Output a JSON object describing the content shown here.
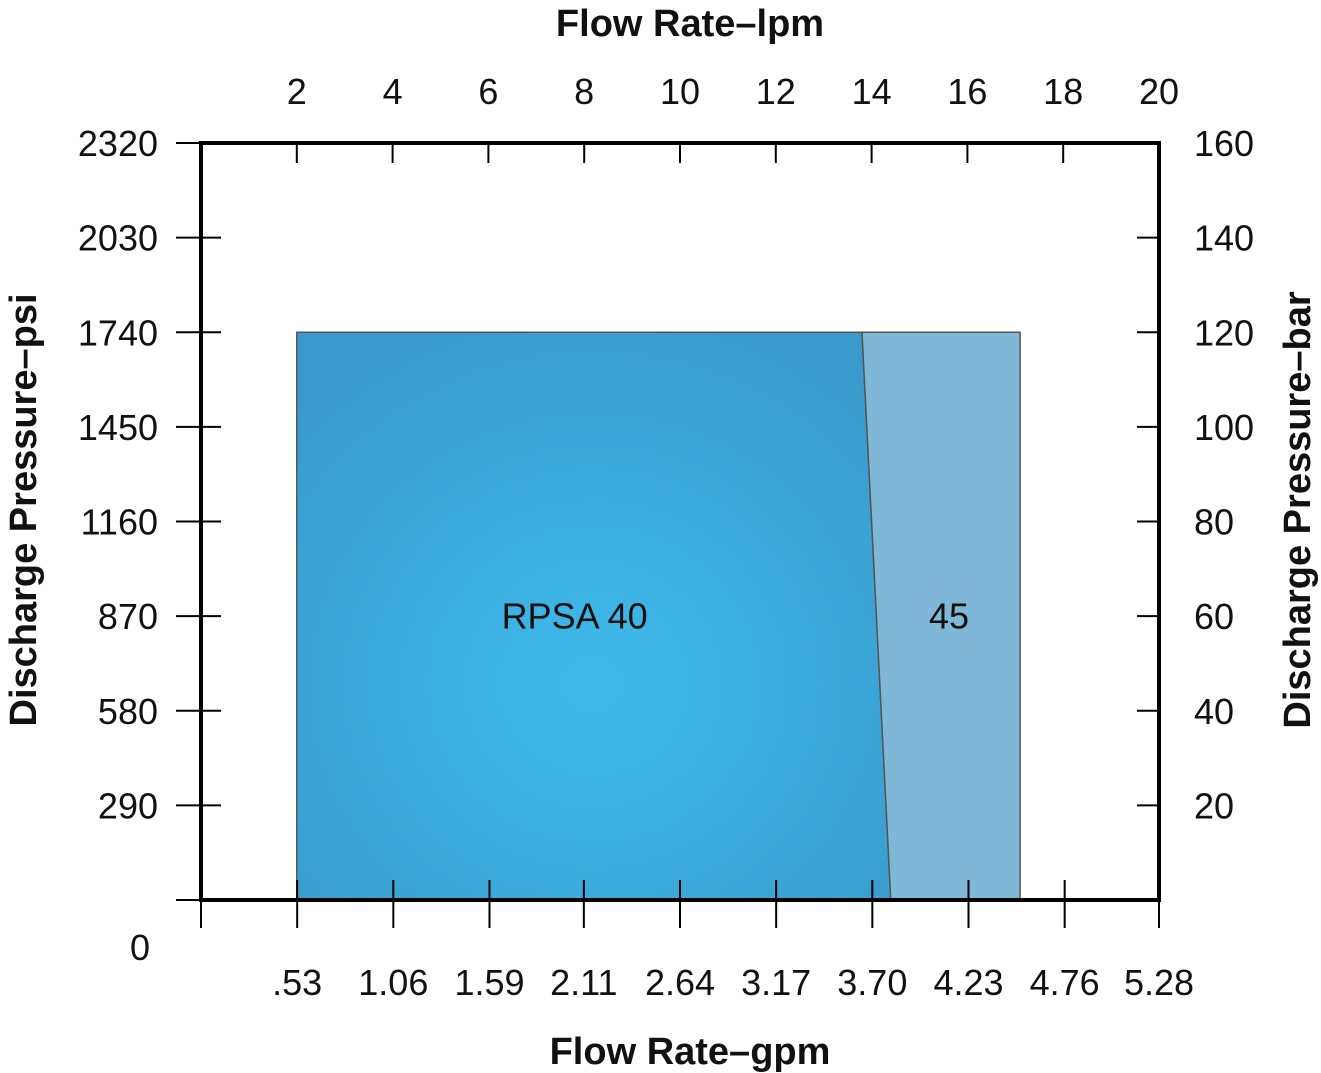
{
  "chart_data": {
    "type": "area",
    "x_top": {
      "label": "Flow Rate–lpm",
      "ticks": [
        "2",
        "4",
        "6",
        "8",
        "10",
        "12",
        "14",
        "16",
        "18",
        "20"
      ],
      "range": [
        0,
        20
      ]
    },
    "x_bottom": {
      "label": "Flow Rate–gpm",
      "ticks": [
        ".53",
        "1.06",
        "1.59",
        "2.11",
        "2.64",
        "3.17",
        "3.70",
        "4.23",
        "4.76",
        "5.28"
      ],
      "range": [
        0,
        5.28
      ]
    },
    "y_left": {
      "label": "Discharge Pressure–psi",
      "ticks": [
        "0",
        "290",
        "580",
        "870",
        "1160",
        "1450",
        "1740",
        "2030",
        "2320"
      ],
      "range": [
        0,
        2320
      ]
    },
    "y_right": {
      "label": "Discharge Pressure–bar",
      "ticks": [
        "20",
        "40",
        "60",
        "80",
        "100",
        "120",
        "140",
        "160"
      ],
      "range": [
        0,
        160
      ]
    },
    "regions": [
      {
        "name": "RPSA 40",
        "polygon_lpm_bar": [
          [
            2,
            0
          ],
          [
            2,
            120
          ],
          [
            13.8,
            120
          ],
          [
            14.4,
            0
          ]
        ],
        "color": "#3aa6d8"
      },
      {
        "name": "45",
        "polygon_lpm_bar": [
          [
            13.8,
            120
          ],
          [
            17.1,
            120
          ],
          [
            17.1,
            0
          ],
          [
            14.4,
            0
          ]
        ],
        "color": "#7fb8d6"
      }
    ],
    "grid": false,
    "legend": "none"
  }
}
